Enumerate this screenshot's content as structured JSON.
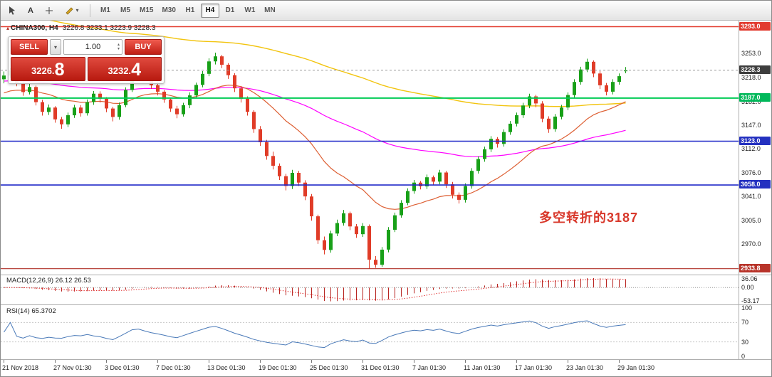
{
  "toolbar": {
    "timeframes": [
      "M1",
      "M5",
      "M15",
      "M30",
      "H1",
      "H4",
      "D1",
      "W1",
      "MN"
    ],
    "active_timeframe": "H4"
  },
  "chart": {
    "symbol_period": "CHINA300, H4",
    "ohlc_text": "3226.8 3233.1 3223.9 3228.3",
    "annotation": {
      "text": "多空转折的3187",
      "color": "#d8372a"
    }
  },
  "trade_panel": {
    "sell_label": "SELL",
    "buy_label": "BUY",
    "lot_value": "1.00",
    "sell_price": {
      "main": "3226.",
      "pip": "8"
    },
    "buy_price": {
      "main": "3232.",
      "pip": "4"
    }
  },
  "price_axis": {
    "badges": [
      {
        "text": "3293.0",
        "price": 3293.0,
        "color": "#e23b2e"
      },
      {
        "text": "3228.3",
        "price": 3228.3,
        "color": "#3d3d3d"
      },
      {
        "text": "3187.0",
        "price": 3187.0,
        "color": "#00b85a"
      },
      {
        "text": "3123.0",
        "price": 3123.0,
        "color": "#2431c0"
      },
      {
        "text": "3058.0",
        "price": 3058.0,
        "color": "#2431c0"
      },
      {
        "text": "2933.8",
        "price": 2933.8,
        "color": "#b8342a"
      }
    ]
  },
  "indicators": {
    "macd": {
      "label": "MACD(12,26,9)",
      "values": "26.12 26.53",
      "axis": [
        {
          "text": "36.06",
          "value": 36.06
        },
        {
          "text": "0.00",
          "value": 0
        },
        {
          "text": "-53.17",
          "value": -53.17
        }
      ]
    },
    "rsi": {
      "label": "RSI(14)",
      "value": "65.3702",
      "axis": [
        {
          "text": "100",
          "value": 100
        },
        {
          "text": "70",
          "value": 70
        },
        {
          "text": "30",
          "value": 30
        },
        {
          "text": "0",
          "value": 0
        }
      ]
    }
  },
  "chart_data": {
    "type": "candlestick",
    "symbol": "CHINA300",
    "timeframe": "H4",
    "title": "CHINA300, H4",
    "last_ohlc": {
      "open": 3226.8,
      "high": 3233.1,
      "low": 3223.9,
      "close": 3228.3
    },
    "price_range": [
      2925,
      3302
    ],
    "y_ticks": [
      3253.0,
      3218.0,
      3182.0,
      3147.0,
      3112.0,
      3076.0,
      3041.0,
      3005.0,
      2970.0
    ],
    "x_ticks": [
      {
        "label": "21 Nov 2018",
        "index": 0
      },
      {
        "label": "27 Nov 01:30",
        "index": 8
      },
      {
        "label": "3 Dec 01:30",
        "index": 16
      },
      {
        "label": "7 Dec 01:30",
        "index": 24
      },
      {
        "label": "13 Dec 01:30",
        "index": 32
      },
      {
        "label": "19 Dec 01:30",
        "index": 40
      },
      {
        "label": "25 Dec 01:30",
        "index": 48
      },
      {
        "label": "31 Dec 01:30",
        "index": 56
      },
      {
        "label": "7 Jan 01:30",
        "index": 64
      },
      {
        "label": "11 Jan 01:30",
        "index": 72
      },
      {
        "label": "17 Jan 01:30",
        "index": 80
      },
      {
        "label": "23 Jan 01:30",
        "index": 88
      },
      {
        "label": "29 Jan 01:30",
        "index": 96
      }
    ],
    "hlines": [
      {
        "price": 3293.0,
        "color": "#e23b2e",
        "width": 1.4
      },
      {
        "price": 3187.0,
        "color": "#00cc55",
        "width": 2
      },
      {
        "price": 3123.0,
        "color": "#2028c8",
        "width": 1.6
      },
      {
        "price": 3058.0,
        "color": "#2028c8",
        "width": 1.6
      },
      {
        "price": 2933.8,
        "color": "#b03028",
        "width": 1.2
      },
      {
        "price": 3228.3,
        "color": "#9a9a9a",
        "width": 1,
        "dash": "3,3"
      }
    ],
    "moving_averages": [
      {
        "name": "ma-slow",
        "period": 150,
        "seed": 3315,
        "color": "#f2c40f",
        "width": 1.4
      },
      {
        "name": "ma-mid",
        "period": 75,
        "seed": 3212,
        "color": "#ff00ff",
        "width": 1.2
      },
      {
        "name": "ma-fast",
        "period": 21,
        "seed": 3192,
        "color": "#dd5f33",
        "width": 1.2
      }
    ],
    "colors": {
      "bull": "#18a018",
      "bear": "#e03c28",
      "rsi": "#4979b8",
      "macd_bar": "#b82420",
      "macd_signal": "#e03030"
    },
    "indicator_params": {
      "macd": [
        12,
        26,
        9
      ],
      "macd_current": [
        26.12,
        26.53
      ],
      "macd_axis_range": [
        -56,
        38
      ],
      "rsi_period": 14,
      "rsi_current": 65.3702,
      "rsi_levels": [
        70,
        30
      ]
    },
    "candles": [
      [
        3215.0,
        3226.5,
        3209.0,
        3220.5
      ],
      [
        3220.5,
        3231.5,
        3217.0,
        3228.0
      ],
      [
        3228.0,
        3230.0,
        3204.5,
        3209.5
      ],
      [
        3209.5,
        3213.0,
        3190.5,
        3196.0
      ],
      [
        3196.0,
        3208.0,
        3192.5,
        3203.5
      ],
      [
        3203.5,
        3205.5,
        3176.0,
        3181.0
      ],
      [
        3181.0,
        3184.5,
        3161.0,
        3166.5
      ],
      [
        3166.5,
        3177.5,
        3162.0,
        3173.0
      ],
      [
        3173.0,
        3175.0,
        3150.5,
        3155.5
      ],
      [
        3155.5,
        3159.0,
        3141.5,
        3148.0
      ],
      [
        3148.0,
        3165.5,
        3144.0,
        3161.5
      ],
      [
        3161.5,
        3177.0,
        3157.5,
        3173.0
      ],
      [
        3173.0,
        3176.5,
        3159.5,
        3164.5
      ],
      [
        3164.5,
        3185.0,
        3161.0,
        3181.0
      ],
      [
        3181.0,
        3197.5,
        3177.0,
        3193.5
      ],
      [
        3193.5,
        3197.0,
        3180.5,
        3186.0
      ],
      [
        3186.0,
        3188.5,
        3166.0,
        3171.5
      ],
      [
        3171.5,
        3174.0,
        3152.5,
        3159.0
      ],
      [
        3159.0,
        3180.5,
        3155.0,
        3176.5
      ],
      [
        3176.5,
        3203.0,
        3173.5,
        3199.0
      ],
      [
        3199.0,
        3230.0,
        3196.0,
        3226.5
      ],
      [
        3226.5,
        3237.5,
        3222.0,
        3233.0
      ],
      [
        3233.0,
        3235.0,
        3213.5,
        3218.5
      ],
      [
        3218.5,
        3222.0,
        3200.5,
        3206.0
      ],
      [
        3206.0,
        3210.5,
        3191.0,
        3196.5
      ],
      [
        3196.5,
        3199.0,
        3180.0,
        3185.0
      ],
      [
        3185.0,
        3188.0,
        3166.5,
        3171.5
      ],
      [
        3171.5,
        3175.5,
        3157.0,
        3163.0
      ],
      [
        3163.0,
        3180.0,
        3159.5,
        3176.5
      ],
      [
        3176.5,
        3195.5,
        3172.0,
        3191.0
      ],
      [
        3191.0,
        3210.0,
        3187.5,
        3206.5
      ],
      [
        3206.5,
        3227.0,
        3203.0,
        3223.0
      ],
      [
        3223.0,
        3246.0,
        3219.5,
        3241.5
      ],
      [
        3241.5,
        3254.5,
        3237.0,
        3249.0
      ],
      [
        3249.0,
        3251.0,
        3231.5,
        3236.5
      ],
      [
        3236.5,
        3239.0,
        3215.5,
        3221.0
      ],
      [
        3221.0,
        3224.0,
        3196.0,
        3201.5
      ],
      [
        3201.5,
        3205.0,
        3180.5,
        3186.0
      ],
      [
        3186.0,
        3189.5,
        3161.0,
        3166.5
      ],
      [
        3166.5,
        3169.0,
        3135.5,
        3141.0
      ],
      [
        3141.0,
        3145.5,
        3116.0,
        3121.5
      ],
      [
        3121.5,
        3125.0,
        3095.5,
        3101.0
      ],
      [
        3101.0,
        3107.5,
        3081.0,
        3086.5
      ],
      [
        3086.5,
        3090.0,
        3065.5,
        3071.0
      ],
      [
        3071.0,
        3074.5,
        3050.0,
        3056.5
      ],
      [
        3056.5,
        3080.5,
        3052.0,
        3076.0
      ],
      [
        3076.0,
        3079.0,
        3056.5,
        3061.5
      ],
      [
        3061.5,
        3065.0,
        3035.5,
        3041.0
      ],
      [
        3041.0,
        3044.5,
        3005.0,
        3011.5
      ],
      [
        3011.5,
        3014.0,
        2970.5,
        2976.0
      ],
      [
        2976.0,
        2981.5,
        2955.0,
        2961.5
      ],
      [
        2961.5,
        2990.0,
        2957.5,
        2986.0
      ],
      [
        2986.0,
        3006.5,
        2982.0,
        3001.5
      ],
      [
        3001.5,
        3021.0,
        2997.5,
        3016.0
      ],
      [
        3016.0,
        3018.5,
        2991.0,
        2996.5
      ],
      [
        2996.5,
        3000.0,
        2979.5,
        2985.0
      ],
      [
        2985.0,
        3001.5,
        2981.0,
        2997.0
      ],
      [
        2997.0,
        2999.5,
        2933.8,
        2947.0
      ],
      [
        2947.0,
        2952.5,
        2935.0,
        2939.5
      ],
      [
        2939.5,
        2966.0,
        2936.5,
        2962.0
      ],
      [
        2962.0,
        2995.5,
        2958.0,
        2991.5
      ],
      [
        2991.5,
        3017.0,
        2988.0,
        3013.0
      ],
      [
        3013.0,
        3035.5,
        3009.5,
        3031.5
      ],
      [
        3031.5,
        3053.0,
        3028.0,
        3049.0
      ],
      [
        3049.0,
        3065.5,
        3045.0,
        3061.5
      ],
      [
        3061.5,
        3064.0,
        3051.5,
        3056.0
      ],
      [
        3056.0,
        3073.5,
        3052.0,
        3069.5
      ],
      [
        3069.5,
        3072.0,
        3057.5,
        3063.0
      ],
      [
        3063.0,
        3080.5,
        3059.0,
        3076.5
      ],
      [
        3076.5,
        3079.0,
        3053.5,
        3059.0
      ],
      [
        3059.0,
        3062.5,
        3038.0,
        3043.5
      ],
      [
        3043.5,
        3047.0,
        3030.5,
        3036.0
      ],
      [
        3036.0,
        3060.5,
        3032.0,
        3056.5
      ],
      [
        3056.5,
        3083.0,
        3052.5,
        3079.0
      ],
      [
        3079.0,
        3100.5,
        3075.0,
        3096.5
      ],
      [
        3096.5,
        3115.0,
        3092.5,
        3111.0
      ],
      [
        3111.0,
        3130.5,
        3107.0,
        3126.5
      ],
      [
        3126.5,
        3129.0,
        3113.5,
        3119.0
      ],
      [
        3119.0,
        3140.5,
        3115.0,
        3136.5
      ],
      [
        3136.5,
        3153.0,
        3132.5,
        3149.0
      ],
      [
        3149.0,
        3165.5,
        3145.0,
        3161.5
      ],
      [
        3161.5,
        3180.0,
        3157.5,
        3176.0
      ],
      [
        3176.0,
        3193.5,
        3172.0,
        3189.5
      ],
      [
        3189.5,
        3192.0,
        3173.5,
        3179.0
      ],
      [
        3179.0,
        3182.5,
        3151.0,
        3156.5
      ],
      [
        3156.5,
        3160.0,
        3135.5,
        3141.0
      ],
      [
        3141.0,
        3163.5,
        3137.0,
        3159.5
      ],
      [
        3159.5,
        3177.0,
        3155.5,
        3173.0
      ],
      [
        3173.0,
        3195.5,
        3169.0,
        3191.5
      ],
      [
        3191.5,
        3215.0,
        3187.5,
        3211.0
      ],
      [
        3211.0,
        3233.5,
        3207.0,
        3229.5
      ],
      [
        3229.5,
        3245.5,
        3225.5,
        3241.0
      ],
      [
        3241.0,
        3243.0,
        3218.0,
        3223.5
      ],
      [
        3223.5,
        3227.0,
        3200.5,
        3206.0
      ],
      [
        3206.0,
        3209.5,
        3191.0,
        3196.5
      ],
      [
        3196.5,
        3215.0,
        3192.5,
        3211.0
      ],
      [
        3211.0,
        3223.5,
        3207.0,
        3219.5
      ],
      [
        3226.8,
        3233.1,
        3223.9,
        3228.3
      ]
    ]
  }
}
